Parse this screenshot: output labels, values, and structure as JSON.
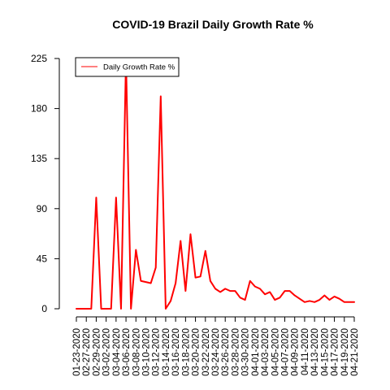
{
  "chart_data": {
    "type": "line",
    "title": "COVID-19 Brazil Daily Growth Rate %",
    "xlabel": "",
    "ylabel": "",
    "ylim": [
      0,
      225
    ],
    "yticks": [
      0,
      45,
      90,
      135,
      180,
      225
    ],
    "xtick_labels": [
      "01-23-2020",
      "02-27-2020",
      "02-29-2020",
      "03-02-2020",
      "03-04-2020",
      "03-06-2020",
      "03-08-2020",
      "03-10-2020",
      "03-12-2020",
      "03-14-2020",
      "03-16-2020",
      "03-18-2020",
      "03-20-2020",
      "03-22-2020",
      "03-24-2020",
      "03-26-2020",
      "03-28-2020",
      "03-30-2020",
      "04-01-2020",
      "04-03-2020",
      "04-05-2020",
      "04-07-2020",
      "04-09-2020",
      "04-11-2020",
      "04-13-2020",
      "04-15-2020",
      "04-17-2020",
      "04-19-2020",
      "04-21-2020"
    ],
    "legend": {
      "position": "top-left",
      "entries": [
        "Daily Growth Rate %"
      ]
    },
    "colors": {
      "series": "#ff0000"
    },
    "series": [
      {
        "name": "Daily Growth Rate %",
        "values": [
          0,
          0,
          0,
          0,
          100,
          0,
          0,
          0,
          100,
          0,
          225,
          0,
          53,
          25,
          24,
          23,
          37,
          191,
          0,
          7,
          23,
          61,
          16,
          67,
          28,
          29,
          52,
          25,
          18,
          15,
          18,
          16,
          16,
          10,
          8,
          25,
          20,
          18,
          13,
          15,
          8,
          10,
          16,
          16,
          12,
          9,
          6,
          7,
          6,
          8,
          12,
          8,
          11,
          9,
          6,
          6,
          6
        ]
      }
    ]
  }
}
